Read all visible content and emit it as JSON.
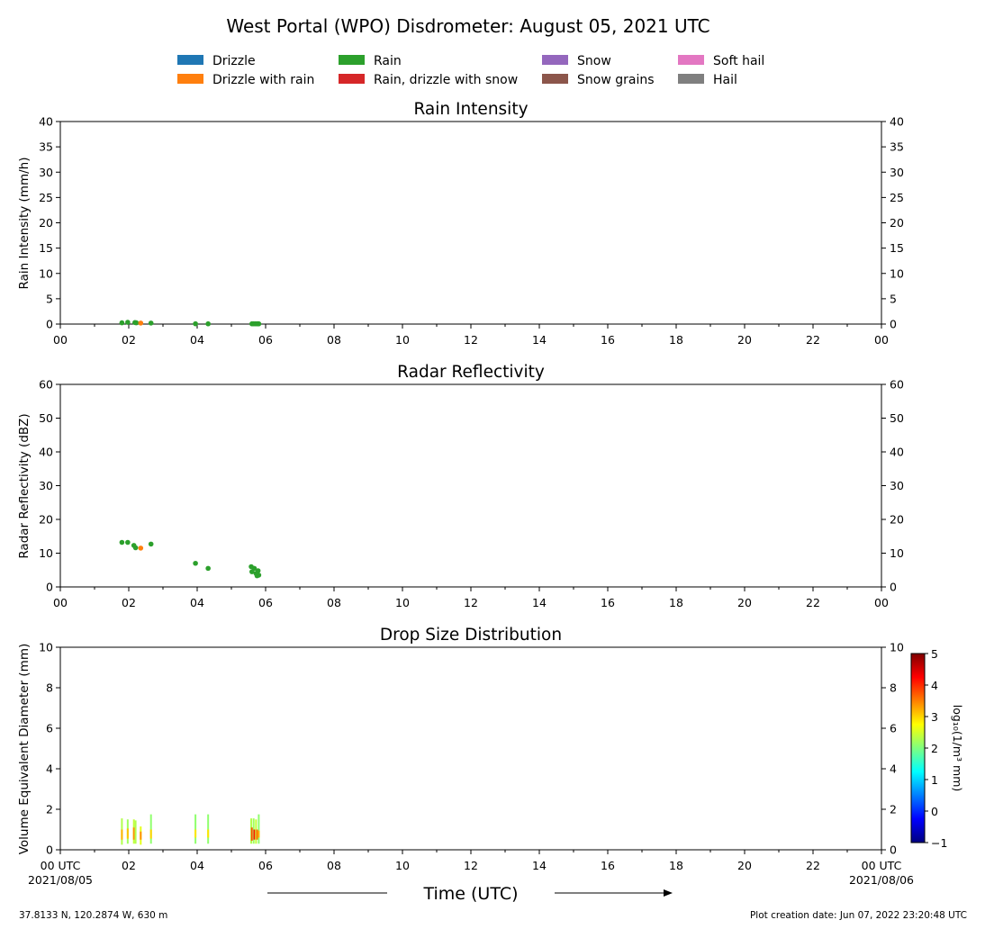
{
  "main_title": "West Portal (WPO) Disdrometer: August 05, 2021 UTC",
  "legend": [
    {
      "label": "Drizzle",
      "color": "#1f77b4"
    },
    {
      "label": "Drizzle with rain",
      "color": "#ff7f0e"
    },
    {
      "label": "Rain",
      "color": "#2ca02c"
    },
    {
      "label": "Rain, drizzle with snow",
      "color": "#d62728"
    },
    {
      "label": "Snow",
      "color": "#9467bd"
    },
    {
      "label": "Snow grains",
      "color": "#8c564b"
    },
    {
      "label": "Soft hail",
      "color": "#e377c2"
    },
    {
      "label": "Hail",
      "color": "#7f7f7f"
    }
  ],
  "x_tick_labels": [
    "00",
    "02",
    "04",
    "06",
    "08",
    "10",
    "12",
    "14",
    "16",
    "18",
    "20",
    "22",
    "00"
  ],
  "bottom_axis": {
    "start_label": "00 UTC",
    "start_date": "2021/08/05",
    "end_label": "00 UTC",
    "end_date": "2021/08/06",
    "xlabel": "Time (UTC)"
  },
  "footer": {
    "location": "37.8133 N, 120.2874 W, 630 m",
    "creation": "Plot creation date: Jun 07, 2022 23:20:48 UTC"
  },
  "chart_data": [
    {
      "type": "scatter",
      "title": "Rain Intensity",
      "ylabel": "Rain Intensity (mm/h)",
      "xlim": [
        0,
        24
      ],
      "ylim": [
        0,
        40
      ],
      "yticks": [
        0,
        5,
        10,
        15,
        20,
        25,
        30,
        35,
        40
      ],
      "series": [
        {
          "name": "Rain",
          "color": "#2ca02c",
          "x": [
            1.8,
            1.97,
            2.18,
            2.22,
            2.65,
            3.95,
            4.32,
            5.6,
            5.65,
            5.7,
            5.75,
            5.78,
            5.8
          ],
          "y": [
            0.25,
            0.35,
            0.3,
            0.25,
            0.2,
            0.06,
            0.05,
            0.05,
            0.05,
            0.05,
            0.05,
            0.05,
            0.05
          ]
        },
        {
          "name": "Drizzle with rain",
          "color": "#ff7f0e",
          "x": [
            2.35
          ],
          "y": [
            0.2
          ]
        }
      ]
    },
    {
      "type": "scatter",
      "title": "Radar Reflectivity",
      "ylabel": "Radar Reflectivity (dBZ)",
      "xlim": [
        0,
        24
      ],
      "ylim": [
        0,
        60
      ],
      "yticks": [
        0,
        10,
        20,
        30,
        40,
        50,
        60
      ],
      "series": [
        {
          "name": "Rain",
          "color": "#2ca02c",
          "x": [
            1.8,
            1.97,
            2.15,
            2.2,
            2.65,
            3.95,
            4.32,
            5.58,
            5.6,
            5.67,
            5.72,
            5.75,
            5.78,
            5.8
          ],
          "y": [
            13.2,
            13.2,
            12.3,
            11.6,
            12.7,
            7.0,
            5.5,
            6.0,
            4.5,
            5.5,
            4.0,
            3.3,
            4.8,
            3.5
          ]
        },
        {
          "name": "Drizzle with rain",
          "color": "#ff7f0e",
          "x": [
            2.35
          ],
          "y": [
            11.5
          ]
        }
      ]
    },
    {
      "type": "heatmap",
      "title": "Drop Size Distribution",
      "ylabel": "Volume Equivalent Diameter (mm)",
      "xlim": [
        0,
        24
      ],
      "ylim": [
        0,
        10
      ],
      "yticks": [
        0,
        2,
        4,
        6,
        8,
        10
      ],
      "colorbar": {
        "label": "log₁₀(1/m³ mm)",
        "range": [
          -1,
          5
        ],
        "ticks": [
          "−1",
          "0",
          "1",
          "2",
          "3",
          "4",
          "5"
        ],
        "colormap": [
          "#00007f",
          "#0000ff",
          "#007fff",
          "#00ffff",
          "#7fff7f",
          "#ffff00",
          "#ff7f00",
          "#ff0000",
          "#7f0000"
        ]
      },
      "cells": [
        {
          "x": 1.8,
          "y0": 0.25,
          "y1": 1.55,
          "v": 2.3
        },
        {
          "x": 1.8,
          "y0": 0.5,
          "y1": 1.0,
          "v": 3.2
        },
        {
          "x": 1.97,
          "y0": 0.3,
          "y1": 1.5,
          "v": 2.2
        },
        {
          "x": 1.97,
          "y0": 0.55,
          "y1": 1.05,
          "v": 3.1
        },
        {
          "x": 2.15,
          "y0": 0.3,
          "y1": 1.5,
          "v": 2.4
        },
        {
          "x": 2.15,
          "y0": 0.5,
          "y1": 1.1,
          "v": 3.4
        },
        {
          "x": 2.2,
          "y0": 0.3,
          "y1": 1.45,
          "v": 2.3
        },
        {
          "x": 2.35,
          "y0": 0.25,
          "y1": 1.15,
          "v": 2.6
        },
        {
          "x": 2.35,
          "y0": 0.5,
          "y1": 0.9,
          "v": 3.4
        },
        {
          "x": 2.65,
          "y0": 0.3,
          "y1": 1.75,
          "v": 2.1
        },
        {
          "x": 2.65,
          "y0": 0.55,
          "y1": 1.0,
          "v": 3.0
        },
        {
          "x": 3.95,
          "y0": 0.3,
          "y1": 1.75,
          "v": 2.1
        },
        {
          "x": 3.95,
          "y0": 0.6,
          "y1": 1.0,
          "v": 2.9
        },
        {
          "x": 4.32,
          "y0": 0.3,
          "y1": 1.75,
          "v": 2.1
        },
        {
          "x": 4.32,
          "y0": 0.6,
          "y1": 1.0,
          "v": 2.9
        },
        {
          "x": 5.58,
          "y0": 0.3,
          "y1": 1.55,
          "v": 2.3
        },
        {
          "x": 5.6,
          "y0": 0.45,
          "y1": 1.1,
          "v": 3.8
        },
        {
          "x": 5.65,
          "y0": 0.3,
          "y1": 1.55,
          "v": 2.2
        },
        {
          "x": 5.67,
          "y0": 0.5,
          "y1": 1.0,
          "v": 4.1
        },
        {
          "x": 5.72,
          "y0": 0.3,
          "y1": 1.5,
          "v": 2.4
        },
        {
          "x": 5.75,
          "y0": 0.5,
          "y1": 1.0,
          "v": 3.6
        },
        {
          "x": 5.8,
          "y0": 0.3,
          "y1": 1.75,
          "v": 2.1
        },
        {
          "x": 5.8,
          "y0": 0.6,
          "y1": 0.95,
          "v": 3.2
        }
      ]
    }
  ]
}
